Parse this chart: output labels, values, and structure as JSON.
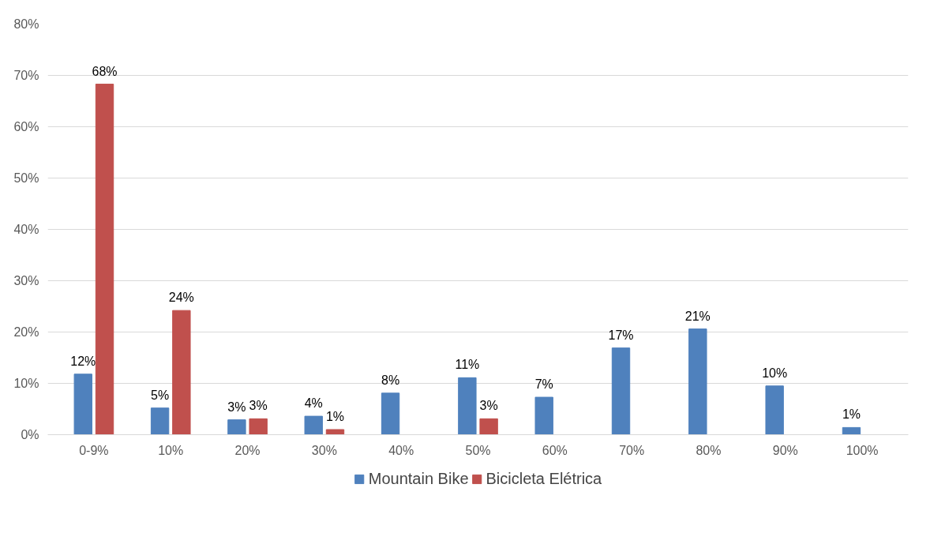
{
  "chart_data": {
    "type": "bar",
    "categories": [
      "0-9%",
      "10%",
      "20%",
      "30%",
      "40%",
      "50%",
      "60%",
      "70%",
      "80%",
      "90%",
      "100%"
    ],
    "series": [
      {
        "name": "Mountain Bike",
        "color": "#4f81bd",
        "values": [
          11.8,
          5.2,
          2.9,
          3.6,
          8.1,
          11.1,
          7.3,
          16.9,
          20.6,
          9.5,
          1.4
        ],
        "value_labels": [
          "12%",
          "5%",
          "3%",
          "4%",
          "8%",
          "11%",
          "7%",
          "17%",
          "21%",
          "10%",
          "1%"
        ]
      },
      {
        "name": "Bicicleta Elétrica",
        "color": "#c0504d",
        "values": [
          68.3,
          24.2,
          3.1,
          1.0,
          null,
          3.1,
          null,
          null,
          null,
          null,
          null
        ],
        "value_labels": [
          "68%",
          "24%",
          "3%",
          "1%",
          null,
          "3%",
          null,
          null,
          null,
          null,
          null
        ]
      }
    ],
    "ylim": [
      0,
      80
    ],
    "yticks": [
      {
        "value": 0,
        "label": "0%"
      },
      {
        "value": 10,
        "label": "10%"
      },
      {
        "value": 20,
        "label": "20%"
      },
      {
        "value": 30,
        "label": "30%"
      },
      {
        "value": 40,
        "label": "40%"
      },
      {
        "value": 50,
        "label": "50%"
      },
      {
        "value": 60,
        "label": "60%"
      },
      {
        "value": 70,
        "label": "70%"
      },
      {
        "value": 80,
        "label": "80%"
      }
    ],
    "grid": "y",
    "legend": "bottom"
  }
}
